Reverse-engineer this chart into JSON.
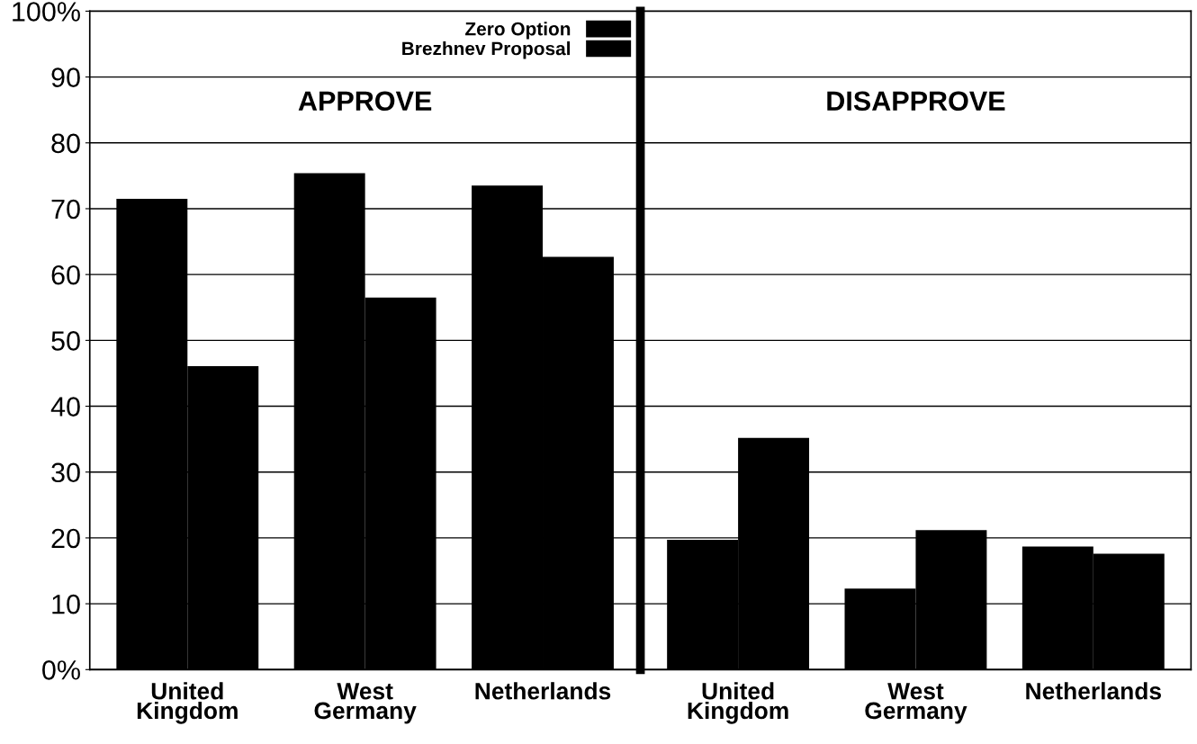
{
  "chart_data": [
    {
      "type": "bar",
      "title": "APPROVE",
      "categories": [
        "United\nKingdom",
        "West\nGermany",
        "Netherlands"
      ],
      "series": [
        {
          "name": "Zero Option",
          "color": "#000000",
          "values": [
            71.5,
            75.4,
            73.5
          ]
        },
        {
          "name": "Brezhnev Proposal",
          "color": "#000000",
          "values": [
            46.1,
            56.5,
            62.7
          ]
        }
      ],
      "ylim": [
        0,
        100
      ],
      "yticks": [
        {
          "value": 0,
          "label": "0%"
        },
        10,
        20,
        30,
        40,
        50,
        60,
        70,
        80,
        90,
        {
          "value": 100,
          "label": "100%"
        }
      ],
      "grid": "y",
      "legend": "top right"
    },
    {
      "type": "bar",
      "title": "DISAPPROVE",
      "categories": [
        "United\nKingdom",
        "West\nGermany",
        "Netherlands"
      ],
      "series": [
        {
          "color": "#000000",
          "values": [
            19.7,
            12.3,
            18.7
          ]
        },
        {
          "color": "#000000",
          "values": [
            35.2,
            21.2,
            17.6
          ]
        }
      ],
      "ylim": [
        0,
        100
      ],
      "yticks": [
        {
          "value": 0,
          "label": null
        },
        {
          "value": 10,
          "label": null
        },
        {
          "value": 20,
          "label": null
        },
        {
          "value": 30,
          "label": null
        },
        {
          "value": 40,
          "label": null
        },
        {
          "value": 50,
          "label": null
        },
        {
          "value": 60,
          "label": null
        },
        {
          "value": 70,
          "label": null
        },
        {
          "value": 80,
          "label": null
        },
        {
          "value": 90,
          "label": null
        },
        {
          "value": 100,
          "label": null
        }
      ],
      "grid": "y",
      "tick_labels": "x"
    }
  ]
}
